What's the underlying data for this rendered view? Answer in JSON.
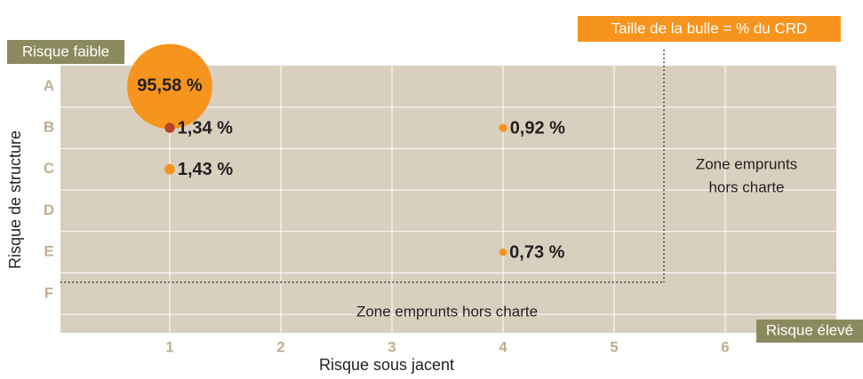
{
  "chart_data": {
    "type": "bubble",
    "x_label": "Risque sous jacent",
    "y_label": "Risque de structure",
    "legend_note": "Taille de la bulle = % du CRD",
    "corner_low": "Risque faible",
    "corner_high": "Risque élevé",
    "annotations": [
      "Zone emprunts hors charte",
      "Zone emprunts",
      "hors charte"
    ],
    "y_categories": [
      "A",
      "B",
      "C",
      "D",
      "E",
      "F"
    ],
    "xlim": [
      0,
      7
    ],
    "xticks": [
      1,
      2,
      3,
      4,
      5,
      6
    ],
    "grid": true,
    "series": [
      {
        "x": [
          1,
          1,
          1,
          4,
          4
        ],
        "y": [
          "A",
          "B",
          "C",
          "B",
          "E"
        ],
        "size": [
          95.58,
          1.34,
          1.43,
          0.92,
          0.73
        ],
        "value_labels": [
          "95,58 %",
          "1,34 %",
          "1,43 %",
          "0,92 %",
          "0,73 %"
        ],
        "colors": [
          "#f7941d",
          "#b8432a",
          "#f7941d",
          "#f7941d",
          "#f7941d"
        ]
      }
    ]
  }
}
